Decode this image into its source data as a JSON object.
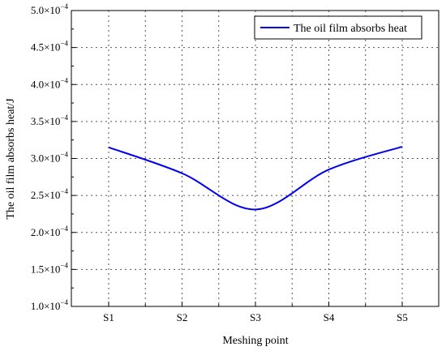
{
  "chart_data": {
    "type": "line",
    "xlabel": "Meshing point",
    "ylabel": "The oil film absorbs heat/J",
    "categories": [
      "S1",
      "S2",
      "S3",
      "S4",
      "S5"
    ],
    "ylim": [
      0.0001,
      0.0005
    ],
    "yticks": [
      0.0001,
      0.00015,
      0.0002,
      0.00025,
      0.0003,
      0.00035,
      0.0004,
      0.00045,
      0.0005
    ],
    "ytick_labels": [
      "1.0×10",
      "1.5×10",
      "2.0×10",
      "2.5×10",
      "3.0×10",
      "3.5×10",
      "4.0×10",
      "4.5×10",
      "5.0×10"
    ],
    "ytick_exponent": "−4",
    "grid": true,
    "legend_position": "top-right",
    "series": [
      {
        "name": "The oil film absorbs heat",
        "color": "#0000ee",
        "values": [
          0.000315,
          0.00028,
          0.000231,
          0.000285,
          0.000316
        ]
      }
    ]
  }
}
